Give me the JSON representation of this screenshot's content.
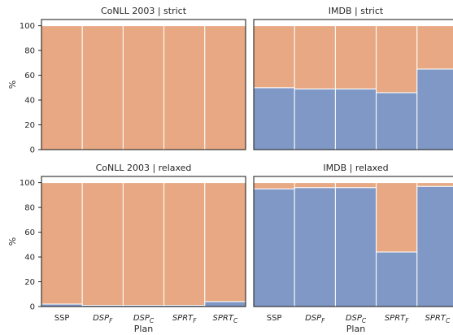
{
  "chart_data": [
    {
      "type": "bar",
      "stacked": true,
      "title": "CoNLL 2003 | strict",
      "categories": [
        {
          "base": "SSP",
          "sub": ""
        },
        {
          "base": "DSP",
          "sub": "F"
        },
        {
          "base": "DSP",
          "sub": "C"
        },
        {
          "base": "SPRT",
          "sub": "F"
        },
        {
          "base": "SPRT",
          "sub": "C"
        }
      ],
      "series": [
        {
          "values": [
            0,
            0,
            0,
            0,
            0
          ],
          "color": "#8098c6"
        },
        {
          "values": [
            100,
            100,
            100,
            100,
            100
          ],
          "color": "#e7a883"
        }
      ],
      "ylabel": "%",
      "xlabel": "",
      "ylim": [
        0,
        105
      ],
      "yticks": [
        "0",
        "20",
        "40",
        "60",
        "80",
        "100"
      ],
      "grid": false
    },
    {
      "type": "bar",
      "stacked": true,
      "title": "IMDB | strict",
      "categories": [
        {
          "base": "SSP",
          "sub": ""
        },
        {
          "base": "DSP",
          "sub": "F"
        },
        {
          "base": "DSP",
          "sub": "C"
        },
        {
          "base": "SPRT",
          "sub": "F"
        },
        {
          "base": "SPRT",
          "sub": "C"
        }
      ],
      "series": [
        {
          "values": [
            50,
            49,
            49,
            46,
            65
          ],
          "color": "#8098c6"
        },
        {
          "values": [
            50,
            51,
            51,
            54,
            35
          ],
          "color": "#e7a883"
        }
      ],
      "ylabel": "",
      "xlabel": "",
      "ylim": [
        0,
        105
      ],
      "yticks": [],
      "grid": false
    },
    {
      "type": "bar",
      "stacked": true,
      "title": "CoNLL 2003 | relaxed",
      "categories": [
        {
          "base": "SSP",
          "sub": ""
        },
        {
          "base": "DSP",
          "sub": "F"
        },
        {
          "base": "DSP",
          "sub": "C"
        },
        {
          "base": "SPRT",
          "sub": "F"
        },
        {
          "base": "SPRT",
          "sub": "C"
        }
      ],
      "series": [
        {
          "values": [
            2,
            1,
            1,
            1,
            4
          ],
          "color": "#8098c6"
        },
        {
          "values": [
            98,
            99,
            99,
            99,
            96
          ],
          "color": "#e7a883"
        }
      ],
      "ylabel": "%",
      "xlabel": "Plan",
      "ylim": [
        0,
        105
      ],
      "yticks": [
        "0",
        "20",
        "40",
        "60",
        "80",
        "100"
      ],
      "grid": false
    },
    {
      "type": "bar",
      "stacked": true,
      "title": "IMDB | relaxed",
      "categories": [
        {
          "base": "SSP",
          "sub": ""
        },
        {
          "base": "DSP",
          "sub": "F"
        },
        {
          "base": "DSP",
          "sub": "C"
        },
        {
          "base": "SPRT",
          "sub": "F"
        },
        {
          "base": "SPRT",
          "sub": "C"
        }
      ],
      "series": [
        {
          "values": [
            95,
            96,
            96,
            44,
            97
          ],
          "color": "#8098c6"
        },
        {
          "values": [
            5,
            4,
            4,
            56,
            3
          ],
          "color": "#e7a883"
        }
      ],
      "ylabel": "",
      "xlabel": "Plan",
      "ylim": [
        0,
        105
      ],
      "yticks": [],
      "grid": false
    }
  ]
}
